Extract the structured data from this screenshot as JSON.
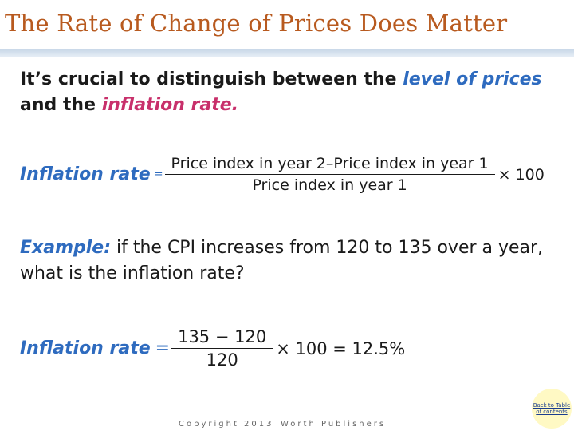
{
  "slide": {
    "title": "The Rate of Change of Prices Does Matter",
    "intro": {
      "part1": "It’s crucial to distinguish between the ",
      "level_of_prices": "level of prices",
      "part2": " and the ",
      "inflation_rate": "inflation rate."
    },
    "formula": {
      "label": "Inflation rate",
      "equals": "=",
      "numerator": "Price index in year 2–Price index in year 1",
      "denominator": "Price index in year 1",
      "multiplier": "× 100"
    },
    "example": {
      "label": "Example:",
      "text": " if the CPI increases from 120 to 135 over a year, what is the inflation rate?"
    },
    "solution": {
      "label": "Inflation rate",
      "equals": "=",
      "numerator": "135 − 120",
      "denominator": "120",
      "result": "× 100 = 12.5%"
    }
  },
  "footer": {
    "copyright": "Copyright 2013",
    "publisher": "Worth Publishers",
    "back_link": "Back to Table of contents"
  },
  "colors": {
    "title": "#b85a1f",
    "accent_blue": "#2e6bbf",
    "accent_pink": "#c8306b"
  }
}
